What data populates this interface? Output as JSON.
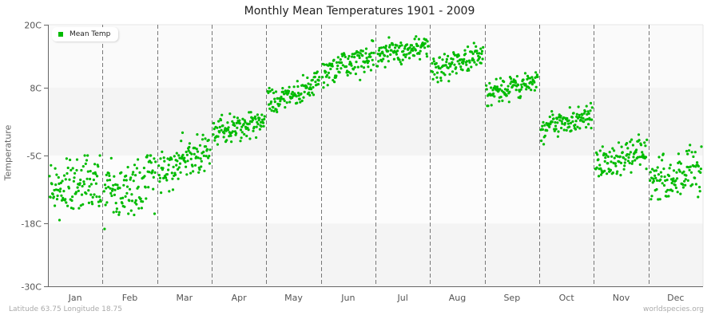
{
  "header": {
    "title": "Monthly Mean Temperatures 1901 - 2009"
  },
  "footer": {
    "location": "Latitude 63.75 Longitude 18.75",
    "source": "worldspecies.org"
  },
  "legend": {
    "label": "Mean Temp",
    "color": "#00bb00"
  },
  "chart_data": {
    "type": "scatter",
    "title": "Monthly Mean Temperatures 1901 - 2009",
    "xlabel": "",
    "ylabel": "Temperature",
    "ylim": [
      -30,
      20
    ],
    "yticks": [
      "20C",
      "8C",
      "-5C",
      "-18C",
      "-30C"
    ],
    "ytick_values": [
      20,
      8,
      -5,
      -18,
      -30
    ],
    "categories": [
      "Jan",
      "Feb",
      "Mar",
      "Apr",
      "May",
      "Jun",
      "Jul",
      "Aug",
      "Sep",
      "Oct",
      "Nov",
      "Dec"
    ],
    "years": [
      1901,
      2009
    ],
    "points_per_month": 109,
    "series": [
      {
        "name": "Mean Temp",
        "color": "#00bb00",
        "monthly_mean": [
          -10.5,
          -11,
          -6,
          0.5,
          7,
          12.5,
          15,
          13,
          8,
          1.5,
          -5.5,
          -9
        ],
        "monthly_min": [
          -21,
          -22,
          -13,
          -3,
          3,
          8,
          11,
          9,
          4.5,
          -3,
          -10,
          -18
        ],
        "monthly_max": [
          -5,
          -5,
          -0.5,
          4,
          11,
          17,
          18,
          16.5,
          12,
          5,
          -1,
          -3
        ],
        "monthly_trend": [
          2.5,
          3,
          4,
          2,
          4,
          3.5,
          2,
          2.5,
          2.5,
          2.5,
          3,
          3
        ]
      }
    ],
    "legend_position": "top-left",
    "grid": "alternating horizontal bands, dashed vertical month separators"
  }
}
